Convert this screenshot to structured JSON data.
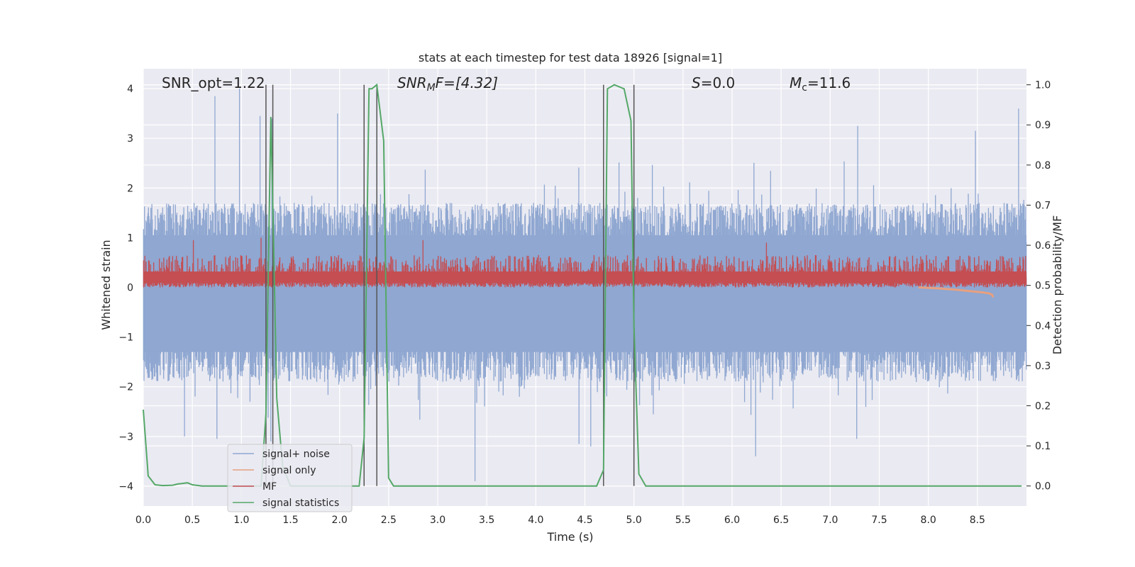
{
  "chart_data": {
    "type": "line",
    "title": "stats at each timestep for test data 18926 [signal=1]",
    "xlabel": "Time (s)",
    "ylabel_left": "Whitened strain",
    "ylabel_right": "Detection probability/MF",
    "xlim": [
      0,
      9.0
    ],
    "ylim_left": [
      -4.4,
      4.4
    ],
    "ylim_right": [
      -0.05,
      1.04
    ],
    "x_ticks": [
      "0.0",
      "0.5",
      "1.0",
      "1.5",
      "2.0",
      "2.5",
      "3.0",
      "3.5",
      "4.0",
      "4.5",
      "5.0",
      "5.5",
      "6.0",
      "6.5",
      "7.0",
      "7.5",
      "8.0",
      "8.5"
    ],
    "y_ticks_left": [
      "4",
      "3",
      "2",
      "1",
      "0",
      "−1",
      "−2",
      "−3",
      "−4"
    ],
    "y_ticks_right": [
      "1.0",
      "0.9",
      "0.8",
      "0.7",
      "0.6",
      "0.5",
      "0.4",
      "0.3",
      "0.2",
      "0.1",
      "0.0"
    ],
    "grid": true,
    "legend_position": "lower-left",
    "annotations": {
      "snr_opt": "SNR_opt=1.22",
      "snr_mf_base": "SNR",
      "snr_mf_sub": "M",
      "snr_mf_rest": "F=[4.32]",
      "s_base": "S",
      "s_rest": "=0.0",
      "mc_base": "M",
      "mc_sub": "c",
      "mc_rest": "=11.6"
    },
    "series": [
      {
        "name": "signal+ noise",
        "color": "#8fa7d1"
      },
      {
        "name": "signal only",
        "color": "#e8a07f"
      },
      {
        "name": "MF",
        "color": "#c44e52"
      },
      {
        "name": "signal statistics",
        "color": "#55a868"
      }
    ],
    "vertical_lines": [
      1.25,
      1.32,
      2.25,
      2.38,
      4.69,
      5.0
    ],
    "signal_statistics": {
      "x": [
        0.0,
        0.05,
        0.12,
        0.2,
        0.3,
        0.35,
        0.45,
        0.5,
        0.6,
        0.8,
        1.0,
        1.2,
        1.25,
        1.3,
        1.32,
        1.36,
        1.42,
        1.5,
        1.7,
        1.9,
        2.1,
        2.2,
        2.25,
        2.3,
        2.33,
        2.38,
        2.45,
        2.5,
        2.55,
        2.7,
        3.0,
        3.5,
        4.0,
        4.5,
        4.62,
        4.69,
        4.73,
        4.8,
        4.9,
        4.97,
        5.0,
        5.05,
        5.12,
        5.3,
        6.0,
        7.0,
        8.0,
        8.95
      ],
      "y": [
        0.19,
        0.025,
        0.003,
        0.001,
        0.002,
        0.005,
        0.008,
        0.003,
        0.0,
        0.0,
        0.0,
        0.0,
        0.18,
        0.92,
        0.7,
        0.22,
        0.05,
        0.0,
        0.0,
        0.0,
        0.0,
        0.0,
        0.12,
        0.99,
        0.99,
        1.0,
        0.86,
        0.02,
        0.0,
        0.0,
        0.0,
        0.0,
        0.0,
        0.0,
        0.0,
        0.04,
        0.99,
        1.0,
        0.99,
        0.91,
        0.4,
        0.03,
        0.0,
        0.0,
        0.0,
        0.0,
        0.0,
        0.0
      ]
    },
    "signal_only": {
      "x": [
        7.9,
        8.1,
        8.3,
        8.45,
        8.55,
        8.62,
        8.65,
        8.66
      ],
      "y": [
        0.0,
        -0.02,
        -0.05,
        -0.08,
        -0.1,
        -0.12,
        -0.15,
        -0.2
      ]
    },
    "signal_noise_envelope": {
      "upper_typical": 1.7,
      "lower_typical": -1.9,
      "upper_spikes": [
        [
          0.73,
          3.85
        ],
        [
          0.98,
          4.0
        ],
        [
          1.19,
          3.45
        ],
        [
          1.31,
          3.4
        ],
        [
          1.98,
          3.5
        ],
        [
          2.38,
          3.95
        ],
        [
          7.28,
          3.25
        ],
        [
          8.48,
          3.15
        ],
        [
          8.92,
          3.6
        ]
      ],
      "lower_spikes": [
        [
          0.42,
          -3.0
        ],
        [
          0.75,
          -3.05
        ],
        [
          1.3,
          -3.1
        ],
        [
          3.38,
          -3.9
        ],
        [
          4.44,
          -3.15
        ],
        [
          4.56,
          -3.2
        ],
        [
          6.24,
          -3.4
        ],
        [
          7.27,
          -3.05
        ]
      ]
    },
    "mf_band": {
      "base": 0.0,
      "typical_peak": 0.65,
      "peaks": [
        [
          0.51,
          0.95
        ],
        [
          1.2,
          1.0
        ],
        [
          2.25,
          1.15
        ],
        [
          2.85,
          0.95
        ],
        [
          5.0,
          1.05
        ],
        [
          6.35,
          0.9
        ]
      ]
    }
  }
}
